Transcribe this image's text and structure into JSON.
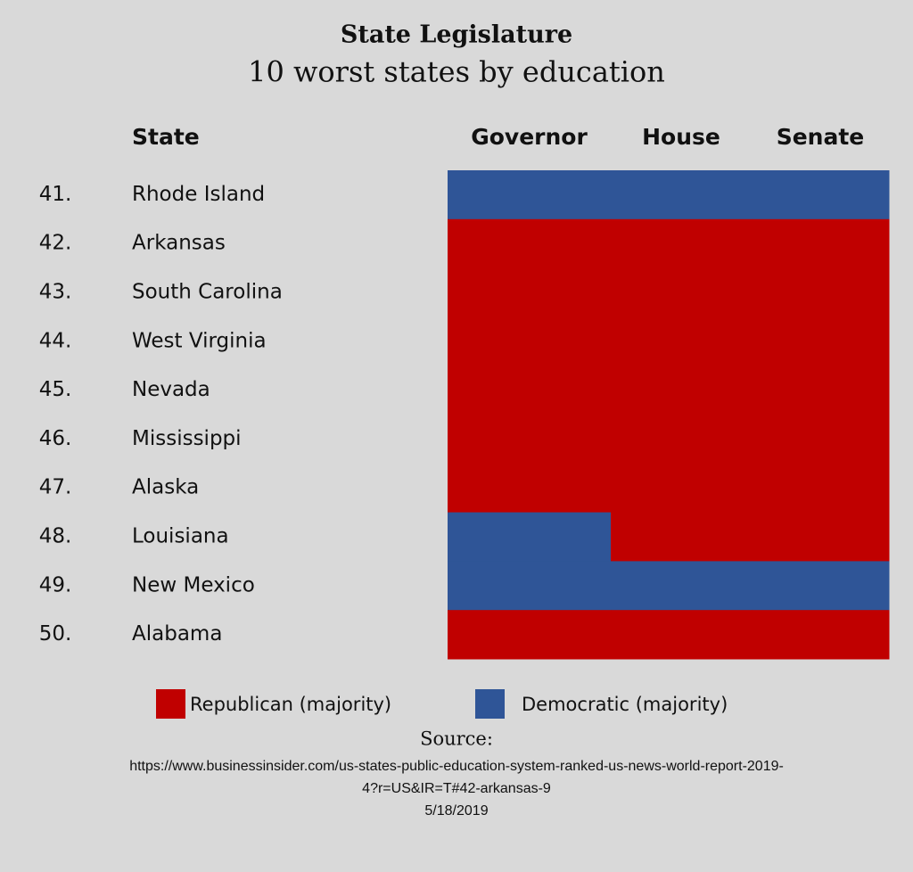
{
  "header": {
    "title": "State Legislature",
    "subtitle": "10 worst states by education"
  },
  "table": {
    "columns": [
      "State",
      "Governor",
      "House",
      "Senate"
    ],
    "rows": [
      {
        "rank": "41.",
        "state": "Rhode Island",
        "cells": [
          1,
          1,
          1
        ]
      },
      {
        "rank": "42.",
        "state": "Arkansas",
        "cells": [
          0,
          0,
          0
        ]
      },
      {
        "rank": "43.",
        "state": "South Carolina",
        "cells": [
          0,
          0,
          0
        ]
      },
      {
        "rank": "44.",
        "state": "West Virginia",
        "cells": [
          0,
          0,
          0
        ]
      },
      {
        "rank": "45.",
        "state": "Nevada",
        "cells": [
          0,
          0,
          0
        ]
      },
      {
        "rank": "46.",
        "state": "Mississippi",
        "cells": [
          0,
          0,
          0
        ]
      },
      {
        "rank": "47.",
        "state": "Alaska",
        "cells": [
          0,
          0,
          0
        ]
      },
      {
        "rank": "48.",
        "state": "Louisiana",
        "cells": [
          1,
          0,
          0
        ]
      },
      {
        "rank": "49.",
        "state": "New Mexico",
        "cells": [
          1,
          1,
          1
        ]
      },
      {
        "rank": "50.",
        "state": "Alabama",
        "cells": [
          0,
          0,
          0
        ]
      }
    ]
  },
  "legend": [
    {
      "label": "Republican (majority)",
      "color": "#c00000"
    },
    {
      "label": "Democratic (majority)",
      "color": "#2f5597"
    }
  ],
  "source": {
    "label": "Source:",
    "lines": [
      "https://www.businessinsider.com/us-states-public-education-system-ranked-us-news-world-report-2019-",
      "4?r=US&IR=T#42-arkansas-9",
      "5/18/2019"
    ]
  }
}
